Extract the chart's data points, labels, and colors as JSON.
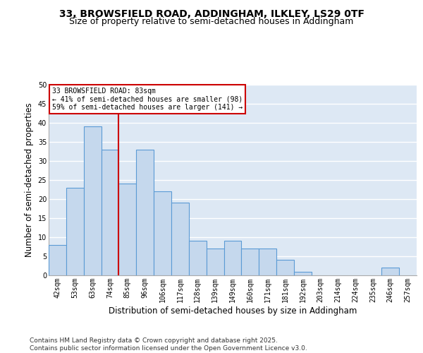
{
  "title": "33, BROWSFIELD ROAD, ADDINGHAM, ILKLEY, LS29 0TF",
  "subtitle": "Size of property relative to semi-detached houses in Addingham",
  "xlabel": "Distribution of semi-detached houses by size in Addingham",
  "ylabel": "Number of semi-detached properties",
  "categories": [
    "42sqm",
    "53sqm",
    "63sqm",
    "74sqm",
    "85sqm",
    "96sqm",
    "106sqm",
    "117sqm",
    "128sqm",
    "139sqm",
    "149sqm",
    "160sqm",
    "171sqm",
    "181sqm",
    "192sqm",
    "203sqm",
    "214sqm",
    "224sqm",
    "235sqm",
    "246sqm",
    "257sqm"
  ],
  "values": [
    8,
    23,
    39,
    33,
    24,
    33,
    22,
    19,
    9,
    7,
    9,
    7,
    7,
    4,
    1,
    0,
    0,
    0,
    0,
    2,
    0
  ],
  "bar_color": "#c5d8ed",
  "bar_edge_color": "#5b9bd5",
  "vline_x": 3.5,
  "vline_color": "#cc0000",
  "annotation_text": "33 BROWSFIELD ROAD: 83sqm\n← 41% of semi-detached houses are smaller (98)\n59% of semi-detached houses are larger (141) →",
  "annotation_box_color": "#ffffff",
  "annotation_box_edge": "#cc0000",
  "ylim": [
    0,
    50
  ],
  "yticks": [
    0,
    5,
    10,
    15,
    20,
    25,
    30,
    35,
    40,
    45,
    50
  ],
  "bg_color": "#dde8f4",
  "grid_color": "#ffffff",
  "footer": "Contains HM Land Registry data © Crown copyright and database right 2025.\nContains public sector information licensed under the Open Government Licence v3.0.",
  "title_fontsize": 10,
  "subtitle_fontsize": 9,
  "axis_label_fontsize": 8.5,
  "tick_fontsize": 7,
  "footer_fontsize": 6.5
}
